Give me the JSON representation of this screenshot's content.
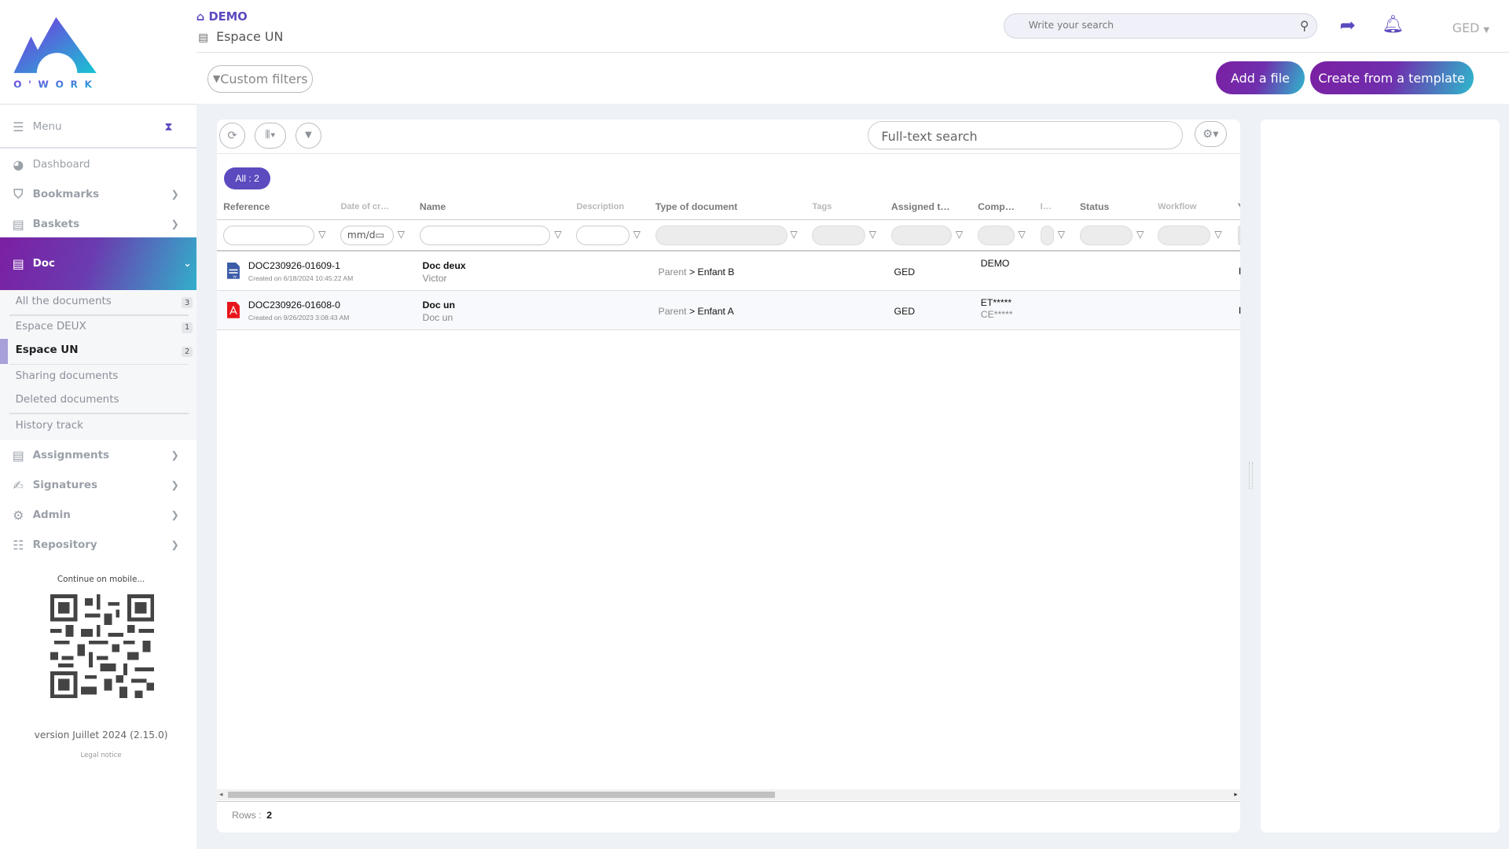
{
  "app": {
    "logo_text": "O'WORK",
    "brand_color": "#5b4bbf"
  },
  "breadcrumb": {
    "root": "DEMO",
    "current": "Espace UN"
  },
  "header": {
    "search_placeholder": "Write your search",
    "user": "GED",
    "custom_filters": "Custom filters",
    "add_file": "Add a file",
    "create_template": "Create from a template"
  },
  "sidebar": {
    "menu": "Menu",
    "items": [
      {
        "label": "Dashboard",
        "icon": "dashboard-icon"
      },
      {
        "label": "Bookmarks",
        "icon": "bookmark-icon"
      },
      {
        "label": "Baskets",
        "icon": "book-icon"
      },
      {
        "label": "Doc",
        "icon": "book-icon"
      },
      {
        "label": "Assignments",
        "icon": "book-icon"
      },
      {
        "label": "Signatures",
        "icon": "signature-icon"
      },
      {
        "label": "Admin",
        "icon": "gear-icon"
      },
      {
        "label": "Repository",
        "icon": "list-icon"
      }
    ],
    "sub": [
      {
        "label": "All the documents",
        "count": "3"
      },
      {
        "label": "Espace DEUX",
        "count": "1"
      },
      {
        "label": "Espace UN",
        "count": "2"
      },
      {
        "label": "Sharing documents"
      },
      {
        "label": "Deleted documents"
      },
      {
        "label": "History track"
      }
    ],
    "mobile": "Continue on mobile...",
    "version": "version Juillet 2024 (2.15.0)",
    "legal": "Legal notice"
  },
  "table": {
    "fulltext_placeholder": "Full-text search",
    "all_badge": "All : 2",
    "date_placeholder": "mm/d",
    "columns": [
      "Reference",
      "Date of cr…",
      "Name",
      "Description",
      "Type of document",
      "Tags",
      "Assigned t…",
      "Comp…",
      "I…",
      "Status",
      "Workflow",
      "Y"
    ],
    "rows": [
      {
        "ref": "DOC230926-01609-1",
        "created": "Created on 6/18/2024 10:45:22 AM",
        "name": "Doc deux",
        "desc": "Victor",
        "type_parent": "Parent",
        "type_child": "> Enfant B",
        "assigned": "GED",
        "comp1": "DEMO",
        "comp2": "",
        "filetype": "word"
      },
      {
        "ref": "DOC230926-01608-0",
        "created": "Created on 9/26/2023 3:08:43 AM",
        "name": "Doc un",
        "desc": "Doc un",
        "type_parent": "Parent",
        "type_child": "> Enfant A",
        "assigned": "GED",
        "comp1": "ET*****",
        "comp2": "CE*****",
        "filetype": "pdf"
      }
    ],
    "rows_label": "Rows :",
    "rows_count": "2"
  }
}
